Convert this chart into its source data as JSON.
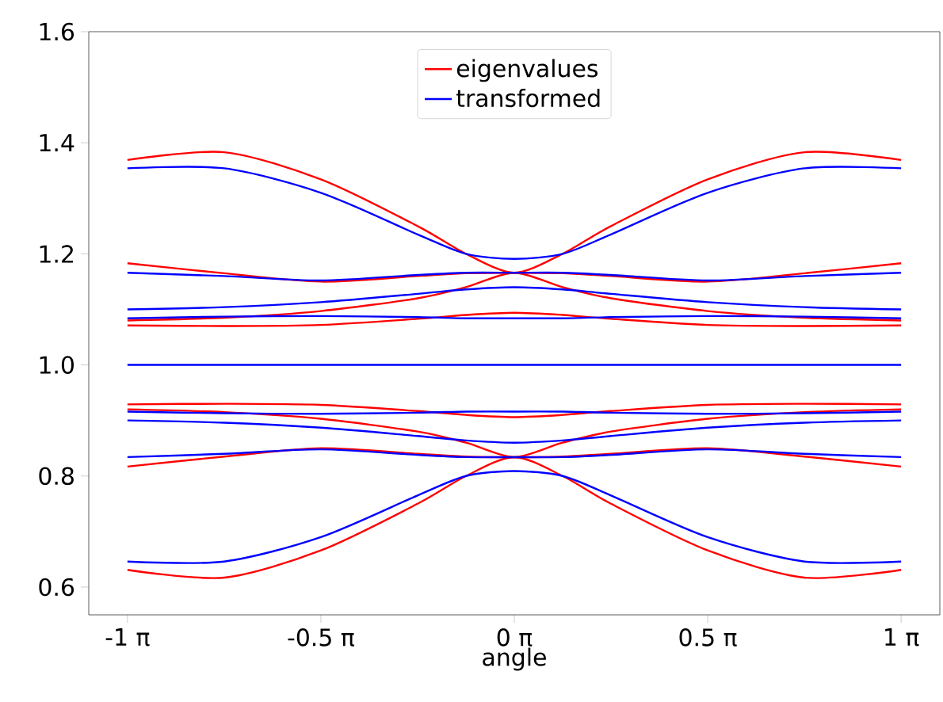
{
  "chart_data": {
    "type": "line",
    "xlabel": "angle",
    "x": [
      -3.1416,
      -2.3562,
      -1.5708,
      -0.7854,
      -0.3927,
      0,
      0.3927,
      0.7854,
      1.5708,
      2.3562,
      3.1416
    ],
    "xlim": [
      -3.456,
      3.456
    ],
    "xticks": [
      {
        "value": -3.1416,
        "label": "-1 π"
      },
      {
        "value": -1.5708,
        "label": "-0.5 π"
      },
      {
        "value": 0,
        "label": "0 π"
      },
      {
        "value": 1.5708,
        "label": "0.5 π"
      },
      {
        "value": 3.1416,
        "label": "1 π"
      }
    ],
    "ylim": [
      0.55,
      1.6
    ],
    "yticks": [
      0.6,
      0.8,
      {
        "value": 1.0,
        "label": "1.0"
      },
      1.2,
      1.4,
      1.6
    ],
    "legend": "top",
    "line_style": "solid",
    "series": [
      {
        "name": "eigenvalues",
        "color": "#ff0000",
        "values": [
          1.369,
          1.383,
          1.334,
          1.25,
          1.2,
          1.166,
          1.2,
          1.25,
          1.334,
          1.383,
          1.369
        ]
      },
      {
        "color": "#ff0000",
        "values": [
          1.183,
          1.165,
          1.15,
          1.16,
          1.165,
          1.166,
          1.165,
          1.16,
          1.15,
          1.165,
          1.183
        ]
      },
      {
        "color": "#ff0000",
        "values": [
          1.08,
          1.085,
          1.097,
          1.12,
          1.14,
          1.166,
          1.14,
          1.12,
          1.097,
          1.085,
          1.08
        ]
      },
      {
        "color": "#ff0000",
        "values": [
          1.071,
          1.07,
          1.072,
          1.083,
          1.09,
          1.094,
          1.09,
          1.083,
          1.072,
          1.07,
          1.071
        ]
      },
      {
        "color": "#ff0000",
        "values": [
          0.929,
          0.93,
          0.928,
          0.917,
          0.91,
          0.906,
          0.91,
          0.917,
          0.928,
          0.93,
          0.929
        ]
      },
      {
        "color": "#ff0000",
        "values": [
          0.92,
          0.915,
          0.903,
          0.88,
          0.86,
          0.834,
          0.86,
          0.88,
          0.903,
          0.915,
          0.92
        ]
      },
      {
        "color": "#ff0000",
        "values": [
          0.817,
          0.835,
          0.85,
          0.84,
          0.835,
          0.834,
          0.835,
          0.84,
          0.85,
          0.835,
          0.817
        ]
      },
      {
        "color": "#ff0000",
        "values": [
          0.631,
          0.617,
          0.666,
          0.75,
          0.8,
          0.834,
          0.8,
          0.75,
          0.666,
          0.617,
          0.631
        ]
      },
      {
        "name": "transformed",
        "color": "#0000ff",
        "values": [
          1.354,
          1.354,
          1.31,
          1.235,
          1.2,
          1.191,
          1.2,
          1.235,
          1.31,
          1.354,
          1.354
        ]
      },
      {
        "color": "#0000ff",
        "values": [
          1.166,
          1.16,
          1.152,
          1.162,
          1.166,
          1.166,
          1.166,
          1.162,
          1.152,
          1.16,
          1.166
        ]
      },
      {
        "color": "#0000ff",
        "values": [
          1.1,
          1.104,
          1.113,
          1.128,
          1.136,
          1.14,
          1.136,
          1.128,
          1.113,
          1.104,
          1.1
        ]
      },
      {
        "color": "#0000ff",
        "values": [
          1.084,
          1.087,
          1.088,
          1.086,
          1.084,
          1.084,
          1.084,
          1.086,
          1.088,
          1.087,
          1.084
        ]
      },
      {
        "color": "#0000ff",
        "values": [
          1.0,
          1.0,
          1.0,
          1.0,
          1.0,
          1.0,
          1.0,
          1.0,
          1.0,
          1.0,
          1.0
        ]
      },
      {
        "color": "#0000ff",
        "values": [
          0.916,
          0.913,
          0.912,
          0.914,
          0.916,
          0.916,
          0.916,
          0.914,
          0.912,
          0.913,
          0.916
        ]
      },
      {
        "color": "#0000ff",
        "values": [
          0.9,
          0.896,
          0.887,
          0.872,
          0.864,
          0.86,
          0.864,
          0.872,
          0.887,
          0.896,
          0.9
        ]
      },
      {
        "color": "#0000ff",
        "values": [
          0.834,
          0.84,
          0.848,
          0.838,
          0.834,
          0.834,
          0.834,
          0.838,
          0.848,
          0.84,
          0.834
        ]
      },
      {
        "color": "#0000ff",
        "values": [
          0.646,
          0.646,
          0.69,
          0.765,
          0.8,
          0.809,
          0.8,
          0.765,
          0.69,
          0.646,
          0.646
        ]
      }
    ]
  }
}
